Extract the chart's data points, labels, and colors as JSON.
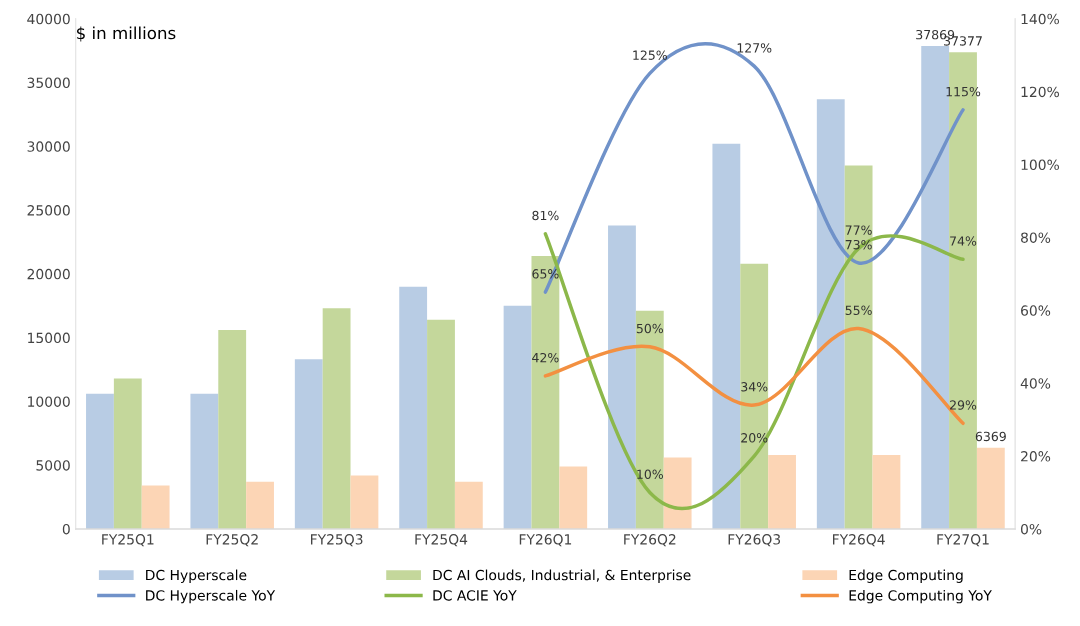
{
  "chart_data": {
    "type": "bar",
    "ylabel": "$ in millions",
    "categories": [
      "FY25Q1",
      "FY25Q2",
      "FY25Q3",
      "FY25Q4",
      "FY26Q1",
      "FY26Q2",
      "FY26Q3",
      "FY26Q4",
      "FY27Q1"
    ],
    "series": [
      {
        "name": "DC Hyperscale",
        "color": "#b8cce4",
        "values": [
          10600,
          10600,
          13300,
          19000,
          17500,
          23800,
          30200,
          33700,
          37869
        ],
        "value_labels": [
          null,
          null,
          null,
          null,
          null,
          null,
          null,
          null,
          "37869"
        ]
      },
      {
        "name": "DC AI Clouds, Industrial, & Enterprise",
        "color": "#c4d79b",
        "values": [
          11800,
          15600,
          17300,
          16400,
          21400,
          17100,
          20800,
          28500,
          37377
        ],
        "value_labels": [
          null,
          null,
          null,
          null,
          null,
          null,
          null,
          null,
          "37377"
        ]
      },
      {
        "name": "Edge Computing",
        "color": "#fcd5b5",
        "values": [
          3400,
          3700,
          4200,
          3700,
          4900,
          5600,
          5800,
          5800,
          6369
        ],
        "value_labels": [
          null,
          null,
          null,
          null,
          null,
          null,
          null,
          null,
          "6369"
        ]
      },
      {
        "name": "DC Hyperscale YoY",
        "type": "line",
        "axis": "y2",
        "color": "#7092c9",
        "values": [
          null,
          null,
          null,
          null,
          65,
          125,
          127,
          73,
          115
        ],
        "value_labels": [
          null,
          null,
          null,
          null,
          "65%",
          "125%",
          "127%",
          "73%",
          "115%"
        ]
      },
      {
        "name": "DC ACIE YoY",
        "type": "line",
        "axis": "y2",
        "color": "#8cb84a",
        "values": [
          null,
          null,
          null,
          null,
          81,
          10,
          20,
          77,
          74
        ],
        "value_labels": [
          null,
          null,
          null,
          null,
          "81%",
          "10%",
          "20%",
          "77%",
          "74%"
        ]
      },
      {
        "name": "Edge Computing YoY",
        "type": "line",
        "axis": "y2",
        "color": "#f39041",
        "values": [
          null,
          null,
          null,
          null,
          42,
          50,
          34,
          55,
          29
        ],
        "value_labels": [
          null,
          null,
          null,
          null,
          "42%",
          "50%",
          "34%",
          "55%",
          "29%"
        ]
      }
    ],
    "ylim": [
      0,
      40000
    ],
    "yticks": [
      0,
      5000,
      10000,
      15000,
      20000,
      25000,
      30000,
      35000,
      40000
    ],
    "y2lim": [
      0,
      140
    ],
    "y2ticks": [
      {
        "value": 0,
        "label": "0%"
      },
      {
        "value": 20,
        "label": "20%"
      },
      {
        "value": 40,
        "label": "40%"
      },
      {
        "value": 60,
        "label": "60%"
      },
      {
        "value": 80,
        "label": "80%"
      },
      {
        "value": 100,
        "label": "100%"
      },
      {
        "value": 120,
        "label": "120%"
      },
      {
        "value": 140,
        "label": "140%"
      }
    ],
    "grid": false,
    "legend": "bottom",
    "marker": "none",
    "line_style": "solid"
  }
}
